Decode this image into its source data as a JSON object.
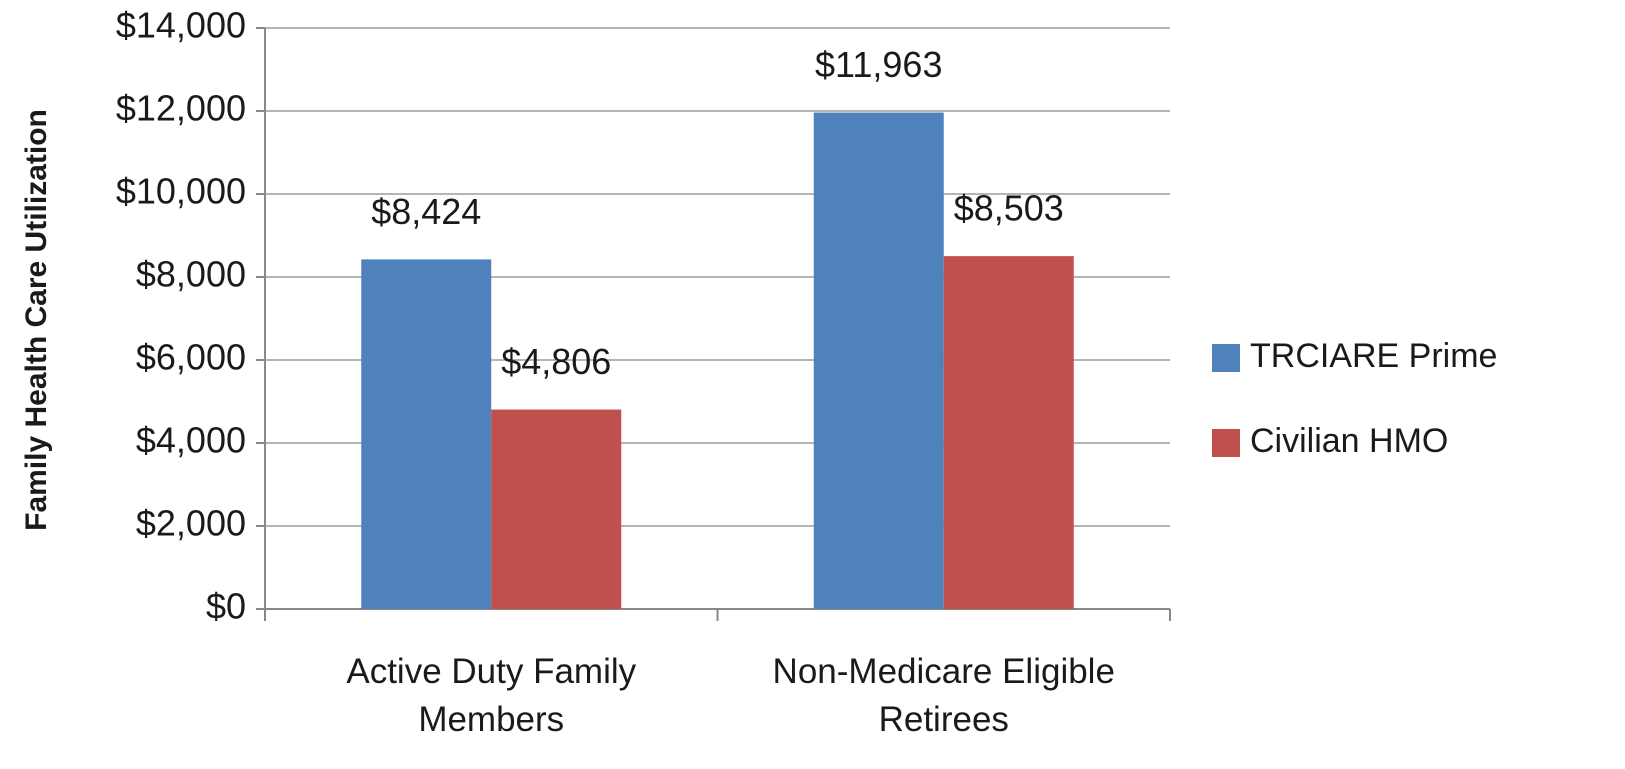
{
  "chart_data": {
    "type": "bar",
    "y_label": "Family Health Care Utilization",
    "categories": [
      "Active Duty Family Members",
      "Non-Medicare Eligible Retirees"
    ],
    "series": [
      {
        "name": "TRCIARE Prime",
        "color": "#4f81bd",
        "values": [
          8424,
          11963
        ],
        "value_labels": [
          "$8,424",
          "$11,963"
        ]
      },
      {
        "name": "Civilian HMO",
        "color": "#c0504d",
        "values": [
          4806,
          8503
        ],
        "value_labels": [
          "$4,806",
          "$8,503"
        ]
      }
    ],
    "ylim": [
      0,
      14000
    ],
    "yticks": [
      {
        "value": 0,
        "label": "$0"
      },
      {
        "value": 2000,
        "label": "$2,000"
      },
      {
        "value": 4000,
        "label": "$4,000"
      },
      {
        "value": 6000,
        "label": "$6,000"
      },
      {
        "value": 8000,
        "label": "$8,000"
      },
      {
        "value": 10000,
        "label": "$10,000"
      },
      {
        "value": 12000,
        "label": "$12,000"
      },
      {
        "value": 14000,
        "label": "$14,000"
      }
    ],
    "grid": true,
    "legend": "right"
  }
}
